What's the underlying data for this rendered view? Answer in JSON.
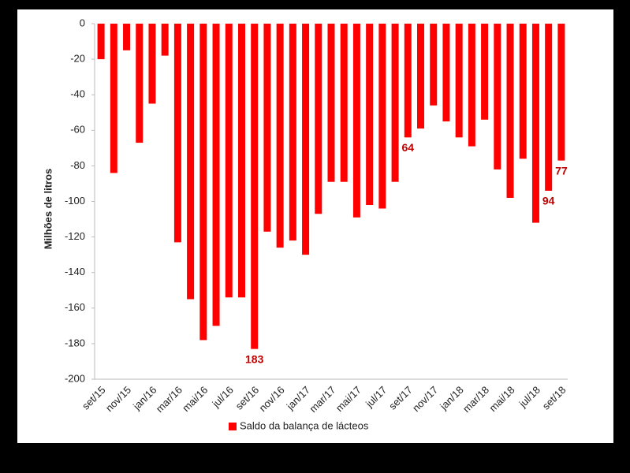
{
  "chart_data": {
    "type": "bar",
    "y_axis_label": "Milhões de litros",
    "categories": [
      "set/15",
      null,
      "nov/15",
      null,
      "jan/16",
      null,
      "mar/16",
      null,
      "mai/16",
      null,
      "jul/16",
      null,
      "set/16",
      null,
      "nov/16",
      null,
      "jan/17",
      null,
      "mar/17",
      null,
      "mai/17",
      null,
      "jul/17",
      null,
      "set/17",
      null,
      "nov/17",
      null,
      "jan/18",
      null,
      "mar/18",
      null,
      "mai/18",
      null,
      "jul/18",
      null,
      "set/18"
    ],
    "series": [
      {
        "name": "Saldo da balança de lácteos",
        "color": "#ff0000",
        "values": [
          -20,
          -84,
          -15,
          -67,
          -45,
          -18,
          -123,
          -155,
          -178,
          -170,
          -154,
          -154,
          -183,
          -117,
          -126,
          -122,
          -130,
          -107,
          -89,
          -89,
          -109,
          -102,
          -104,
          -89,
          -64,
          -59,
          -46,
          -55,
          -64,
          -69,
          -54,
          -82,
          -98,
          -76,
          -112,
          -94,
          -77
        ],
        "value_labels": [
          null,
          null,
          null,
          null,
          null,
          null,
          null,
          null,
          null,
          null,
          null,
          null,
          "183",
          null,
          null,
          null,
          null,
          null,
          null,
          null,
          null,
          null,
          null,
          null,
          "64",
          null,
          null,
          null,
          null,
          null,
          null,
          null,
          null,
          null,
          null,
          "94",
          "77"
        ]
      }
    ],
    "ylim": [
      -200,
      0
    ],
    "yticks": [
      0,
      -20,
      -40,
      -60,
      -80,
      -100,
      -120,
      -140,
      -160,
      -180,
      -200
    ],
    "grid": false,
    "legend": "bottom"
  }
}
